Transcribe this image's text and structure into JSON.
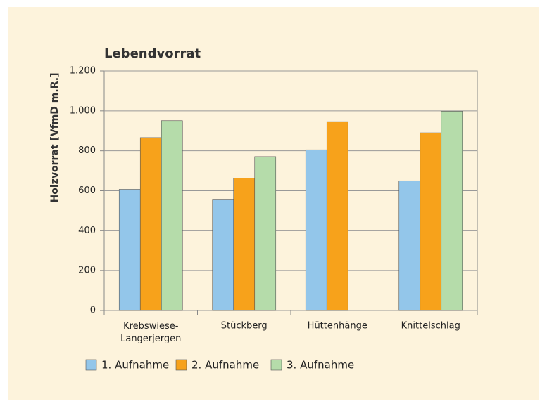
{
  "chart_data": {
    "type": "bar",
    "title": "Lebendvorrat",
    "y_label": "Holzvorrat [VfmD m.R.]",
    "categories": [
      "Krebswiese-Langerjergen",
      "Stückberg",
      "Hüttenhänge",
      "Knittelschlag"
    ],
    "series": [
      {
        "name": "1. Aufnahme",
        "color": "#93c6ea",
        "values": [
          607,
          554,
          805,
          650
        ]
      },
      {
        "name": "2. Aufnahme",
        "color": "#f7a21b",
        "values": [
          866,
          663,
          946,
          890
        ]
      },
      {
        "name": "3. Aufnahme",
        "color": "#b5dcaa",
        "values": [
          951,
          771,
          null,
          998
        ]
      }
    ],
    "ylim": [
      0,
      1200
    ],
    "yticks": [
      0,
      200,
      400,
      600,
      800,
      {
        "value": 1000,
        "label": "1.000"
      },
      {
        "value": 1200,
        "label": "1.200"
      }
    ],
    "grid": true,
    "legend": "bottom"
  }
}
